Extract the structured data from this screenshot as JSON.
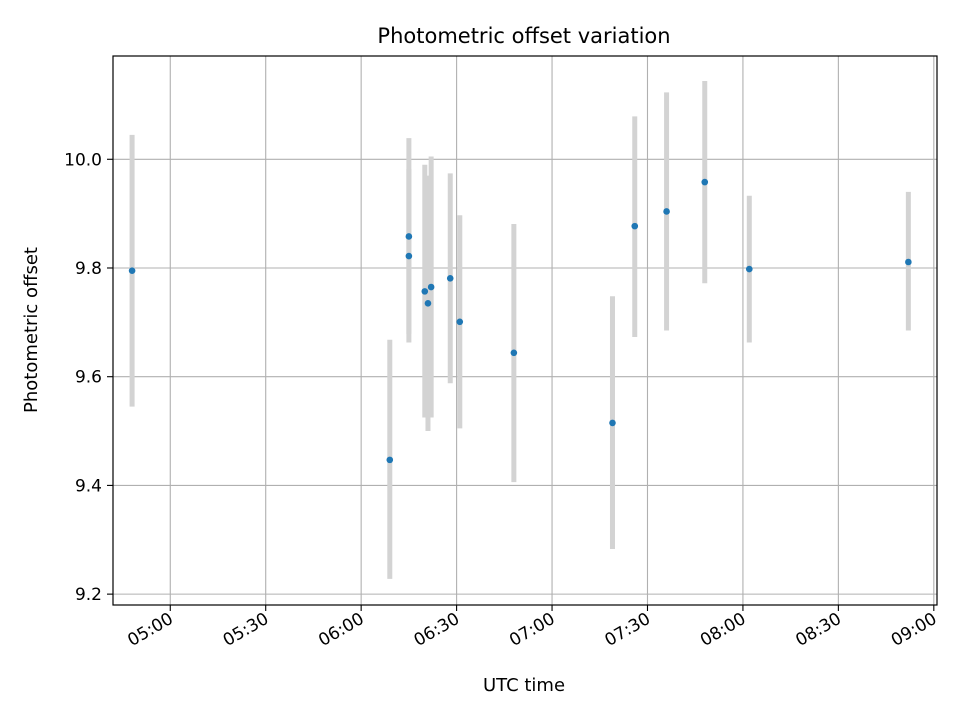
{
  "chart_data": {
    "type": "scatter",
    "title": "Photometric offset variation",
    "xlabel": "UTC time",
    "ylabel": "Photometric offset",
    "x_axis_type": "time",
    "xlim": [
      "04:42",
      "09:01"
    ],
    "ylim": [
      9.18,
      10.19
    ],
    "x_ticks": [
      "05:00",
      "05:30",
      "06:00",
      "06:30",
      "07:00",
      "07:30",
      "08:00",
      "08:30",
      "09:00"
    ],
    "y_ticks": [
      9.2,
      9.4,
      9.6,
      9.8,
      10.0
    ],
    "y_tick_labels": [
      "9.2",
      "9.4",
      "9.6",
      "9.8",
      "10.0"
    ],
    "grid": true,
    "marker_color": "#1f77b4",
    "errorbar_color": "#d3d3d3",
    "points": [
      {
        "x": "04:48",
        "y": 9.795,
        "yerr_low": 9.545,
        "yerr_high": 10.045
      },
      {
        "x": "06:09",
        "y": 9.447,
        "yerr_low": 9.228,
        "yerr_high": 9.668
      },
      {
        "x": "06:15",
        "y": 9.822,
        "yerr_low": 9.663,
        "yerr_high": 9.982
      },
      {
        "x": "06:15",
        "y": 9.858,
        "yerr_low": 9.679,
        "yerr_high": 10.039
      },
      {
        "x": "06:20",
        "y": 9.757,
        "yerr_low": 9.525,
        "yerr_high": 9.99
      },
      {
        "x": "06:21",
        "y": 9.735,
        "yerr_low": 9.5,
        "yerr_high": 9.97
      },
      {
        "x": "06:22",
        "y": 9.765,
        "yerr_low": 9.525,
        "yerr_high": 10.005
      },
      {
        "x": "06:28",
        "y": 9.781,
        "yerr_low": 9.588,
        "yerr_high": 9.974
      },
      {
        "x": "06:31",
        "y": 9.701,
        "yerr_low": 9.505,
        "yerr_high": 9.897
      },
      {
        "x": "06:48",
        "y": 9.644,
        "yerr_low": 9.406,
        "yerr_high": 9.881
      },
      {
        "x": "07:19",
        "y": 9.515,
        "yerr_low": 9.283,
        "yerr_high": 9.748
      },
      {
        "x": "07:26",
        "y": 9.877,
        "yerr_low": 9.673,
        "yerr_high": 10.079
      },
      {
        "x": "07:36",
        "y": 9.904,
        "yerr_low": 9.685,
        "yerr_high": 10.123
      },
      {
        "x": "07:48",
        "y": 9.958,
        "yerr_low": 9.772,
        "yerr_high": 10.144
      },
      {
        "x": "08:02",
        "y": 9.798,
        "yerr_low": 9.663,
        "yerr_high": 9.933
      },
      {
        "x": "08:52",
        "y": 9.811,
        "yerr_low": 9.685,
        "yerr_high": 9.94
      }
    ]
  }
}
